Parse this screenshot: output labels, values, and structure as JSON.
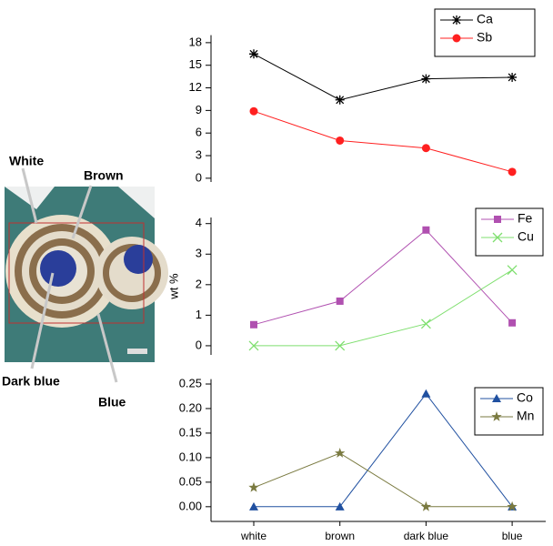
{
  "image_labels": [
    "White",
    "Brown",
    "Dark blue",
    "Blue"
  ],
  "chart_data": [
    {
      "type": "line",
      "categories": [
        null,
        null,
        null,
        null
      ],
      "series": [
        {
          "name": "Ca",
          "color": "#000000",
          "marker": "asterisk",
          "values": [
            16.5,
            10.4,
            13.2,
            13.4
          ]
        },
        {
          "name": "Sb",
          "color": "#ff2020",
          "marker": "circle",
          "values": [
            8.9,
            5.0,
            4.0,
            0.85
          ]
        }
      ],
      "ylim": [
        -0.5,
        19
      ],
      "yticks": [
        0,
        3,
        6,
        9,
        12,
        15,
        18
      ],
      "legend": "upper right"
    },
    {
      "type": "line",
      "categories": [
        null,
        null,
        null,
        null
      ],
      "ylabel": "wt %",
      "series": [
        {
          "name": "Fe",
          "color": "#b050b0",
          "marker": "square",
          "values": [
            0.69,
            1.46,
            3.79,
            0.75
          ]
        },
        {
          "name": "Cu",
          "color": "#7fdf6f",
          "marker": "x",
          "values": [
            0,
            0,
            0.72,
            2.48
          ]
        }
      ],
      "ylim": [
        -0.3,
        4.2
      ],
      "yticks": [
        0,
        1,
        2,
        3,
        4
      ],
      "legend": "upper right"
    },
    {
      "type": "line",
      "categories": [
        "white",
        "brown",
        "dark blue",
        "blue"
      ],
      "series": [
        {
          "name": "Co",
          "color": "#2050a0",
          "marker": "triangle",
          "values": [
            0,
            0,
            0.23,
            0
          ]
        },
        {
          "name": "Mn",
          "color": "#7a7a40",
          "marker": "star",
          "values": [
            0.039,
            0.109,
            0,
            0
          ]
        }
      ],
      "ylim": [
        -0.03,
        0.26
      ],
      "yticks": [
        {
          "value": 0,
          "label": "0.00"
        },
        {
          "value": 0.05,
          "label": "0.05"
        },
        {
          "value": 0.1,
          "label": "0.10"
        },
        {
          "value": 0.15,
          "label": "0.15"
        },
        {
          "value": 0.2,
          "label": "0.20"
        },
        {
          "value": 0.25,
          "label": "0.25"
        }
      ],
      "legend": "upper right"
    }
  ]
}
